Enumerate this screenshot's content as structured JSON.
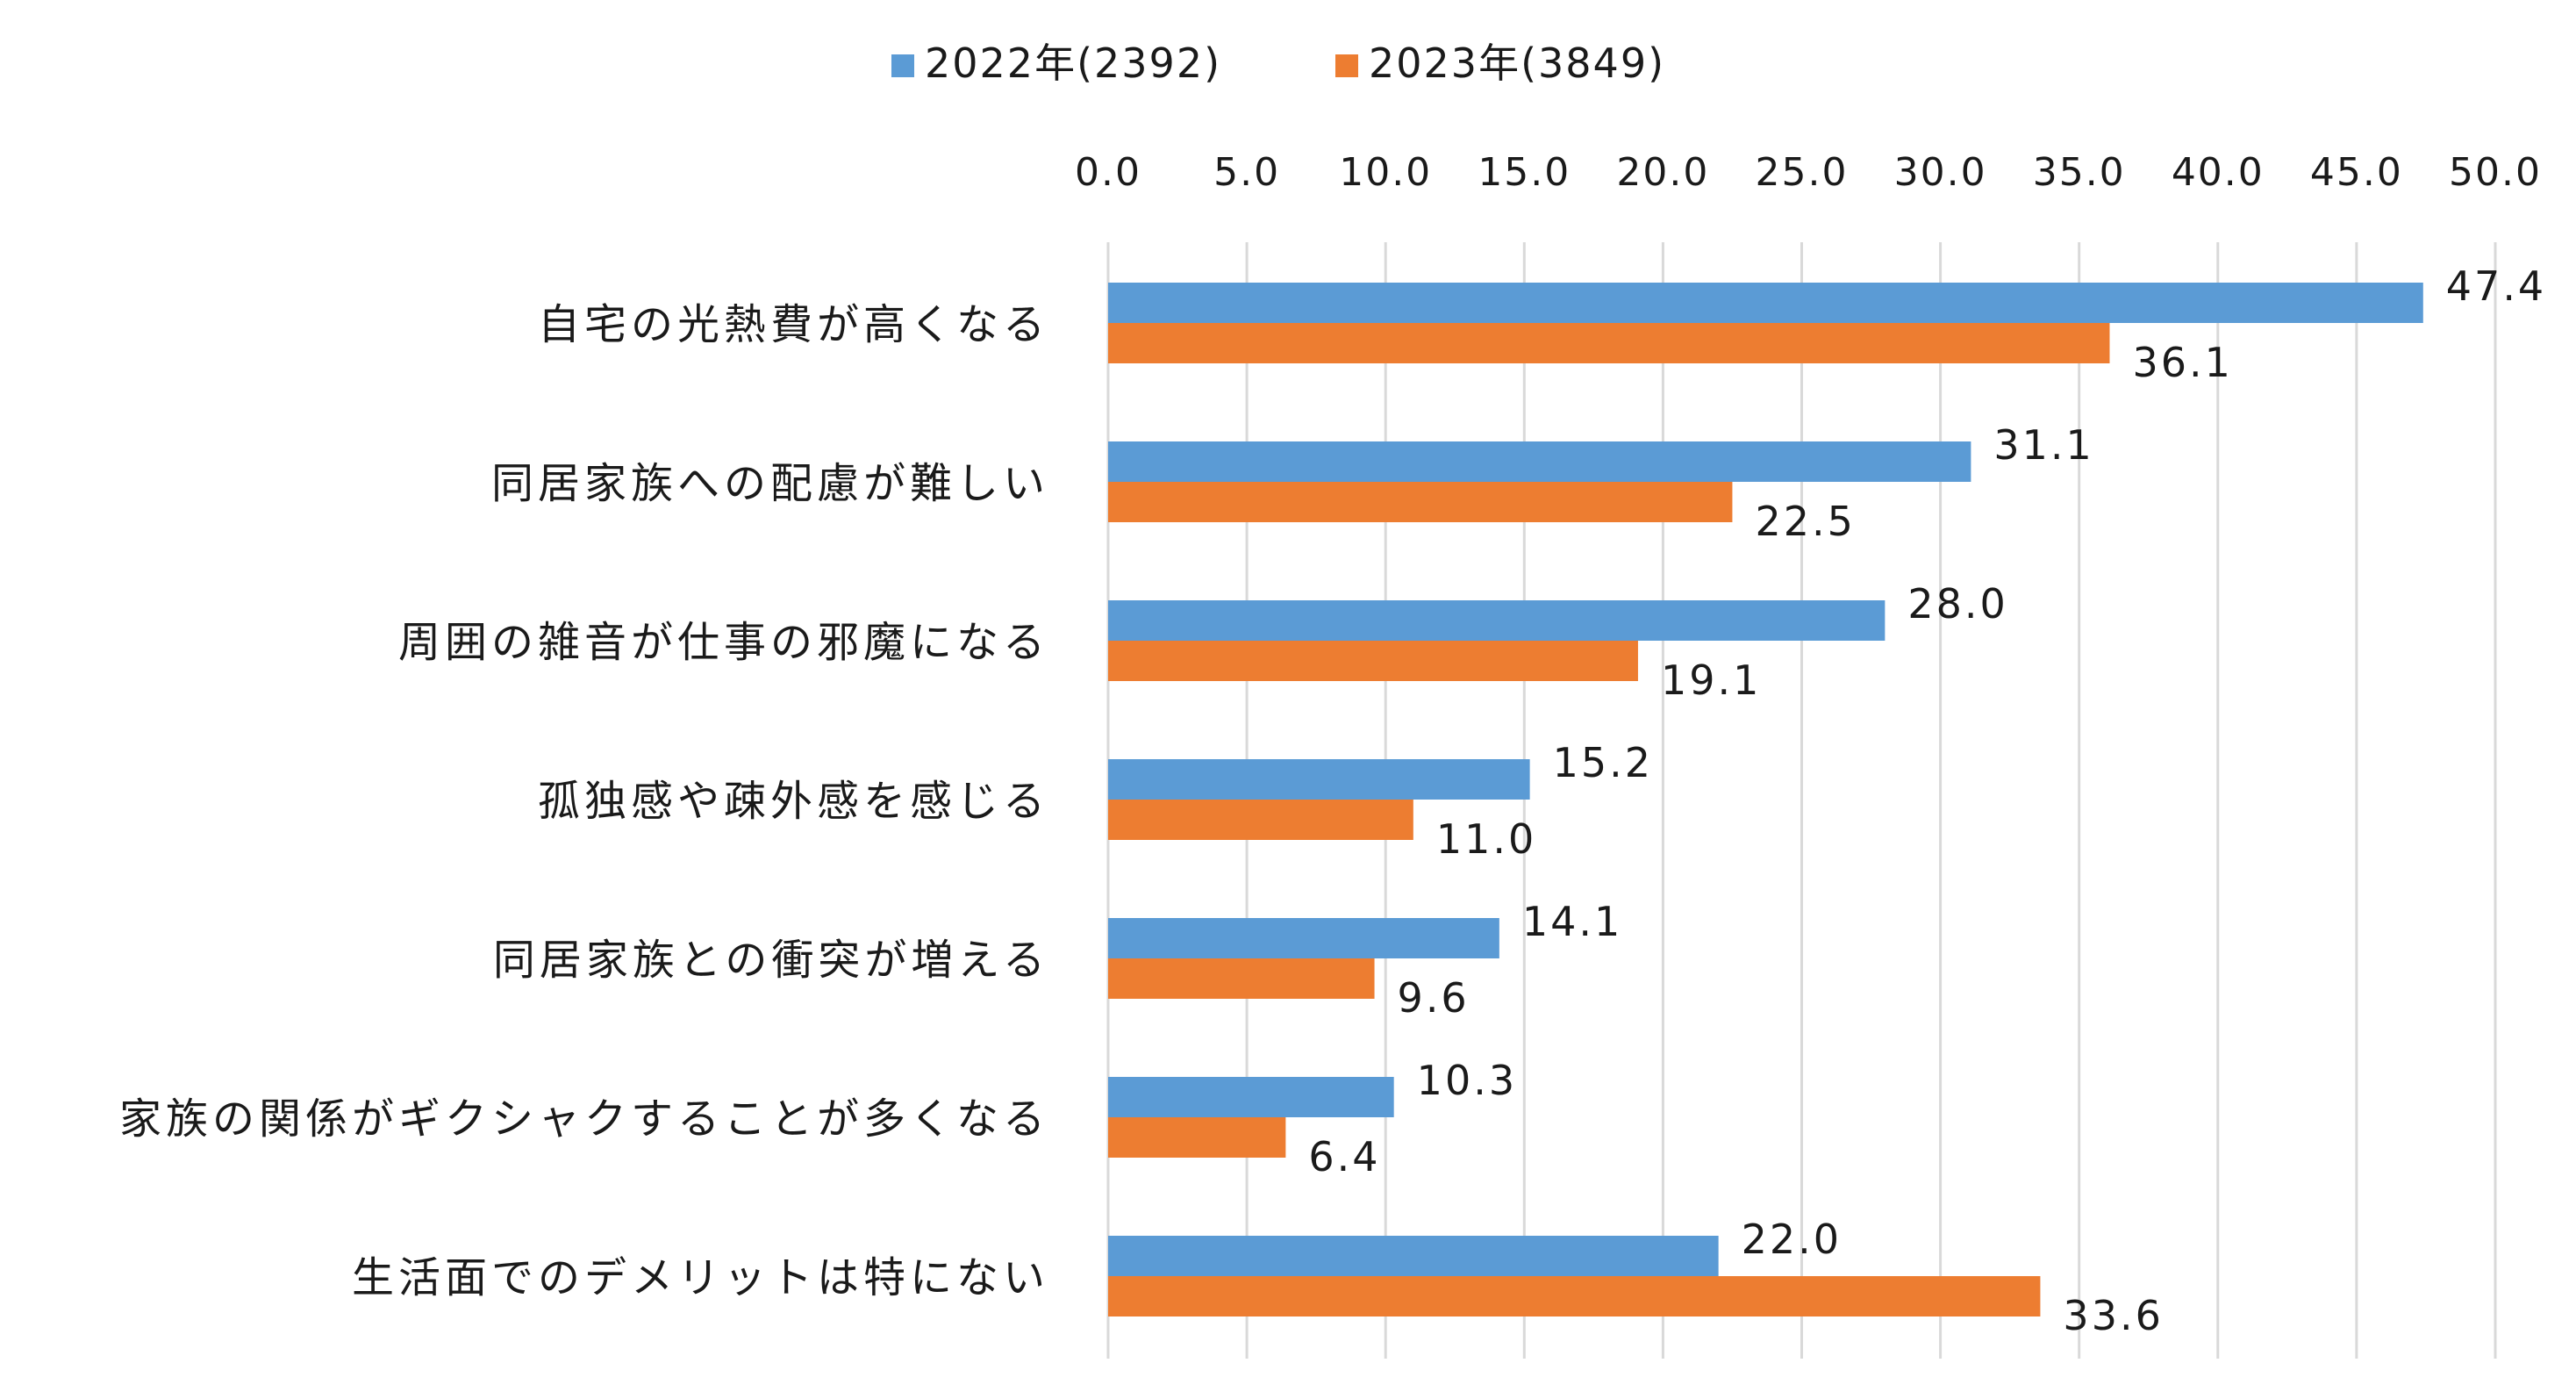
{
  "chart_data": {
    "type": "bar",
    "orientation": "horizontal",
    "title": "",
    "xlabel": "",
    "ylabel": "",
    "xlim": [
      0,
      50
    ],
    "x_ticks": [
      "0.0",
      "5.0",
      "10.0",
      "15.0",
      "20.0",
      "25.0",
      "30.0",
      "35.0",
      "40.0",
      "45.0",
      "50.0"
    ],
    "x_axis_position": "top",
    "grid": true,
    "legend_position": "top",
    "categories": [
      "自宅の光熱費が高くなる",
      "同居家族への配慮が難しい",
      "周囲の雑音が仕事の邪魔になる",
      "孤独感や疎外感を感じる",
      "同居家族との衝突が増える",
      "家族の関係がギクシャクすることが多くなる",
      "生活面でのデメリットは特にない"
    ],
    "series": [
      {
        "name": "2022年(2392)",
        "color": "#5B9BD5",
        "values": [
          47.4,
          31.1,
          28.0,
          15.2,
          14.1,
          10.3,
          22.0
        ],
        "labels": [
          "47.4",
          "31.1",
          "28.0",
          "15.2",
          "14.1",
          "10.3",
          "22.0"
        ]
      },
      {
        "name": "2023年(3849)",
        "color": "#ED7D31",
        "values": [
          36.1,
          22.5,
          19.1,
          11.0,
          9.6,
          6.4,
          33.6
        ],
        "labels": [
          "36.1",
          "22.5",
          "19.1",
          "11.0",
          "9.6",
          "6.4",
          "33.6"
        ]
      }
    ]
  }
}
